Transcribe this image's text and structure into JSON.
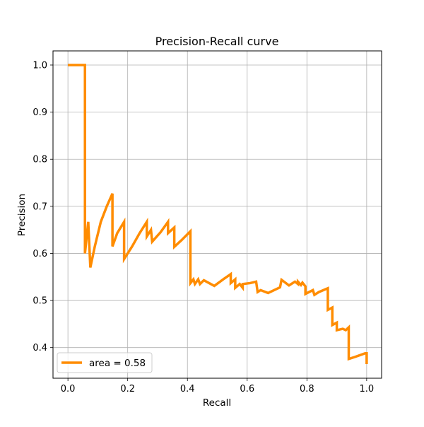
{
  "chart_data": {
    "type": "line",
    "title": "Precision-Recall curve",
    "xlabel": "Recall",
    "ylabel": "Precision",
    "xlim": [
      -0.05,
      1.05
    ],
    "ylim": [
      0.335,
      1.03
    ],
    "xticks": [
      0.0,
      0.2,
      0.4,
      0.6,
      0.8,
      1.0
    ],
    "xtick_labels": [
      "0.0",
      "0.2",
      "0.4",
      "0.6",
      "0.8",
      "1.0"
    ],
    "yticks": [
      0.4,
      0.5,
      0.6,
      0.7,
      0.8,
      0.9,
      1.0
    ],
    "ytick_labels": [
      "0.4",
      "0.5",
      "0.6",
      "0.7",
      "0.8",
      "0.9",
      "1.0"
    ],
    "grid": true,
    "legend_position": "lower-left",
    "colors": {
      "series": "#ff8c00",
      "grid": "#b0b0b0",
      "axis": "#000000"
    },
    "series": [
      {
        "name": "area = 0.58",
        "x": [
          0.0,
          0.057,
          0.057,
          0.057,
          0.068,
          0.075,
          0.075,
          0.09,
          0.11,
          0.13,
          0.149,
          0.149,
          0.165,
          0.188,
          0.188,
          0.215,
          0.24,
          0.264,
          0.264,
          0.278,
          0.282,
          0.282,
          0.31,
          0.335,
          0.335,
          0.356,
          0.356,
          0.38,
          0.41,
          0.41,
          0.42,
          0.425,
          0.436,
          0.442,
          0.455,
          0.49,
          0.52,
          0.545,
          0.545,
          0.56,
          0.56,
          0.575,
          0.585,
          0.585,
          0.61,
          0.63,
          0.635,
          0.645,
          0.67,
          0.71,
          0.715,
          0.74,
          0.76,
          0.77,
          0.77,
          0.78,
          0.785,
          0.795,
          0.795,
          0.82,
          0.825,
          0.84,
          0.87,
          0.87,
          0.885,
          0.885,
          0.9,
          0.9,
          0.92,
          0.93,
          0.94,
          0.94,
          0.96,
          0.995,
          1.0,
          1.0
        ],
        "y": [
          1.0,
          1.0,
          0.88,
          0.6,
          0.667,
          0.57,
          0.57,
          0.615,
          0.667,
          0.7,
          0.727,
          0.615,
          0.643,
          0.667,
          0.588,
          0.615,
          0.643,
          0.667,
          0.636,
          0.65,
          0.625,
          0.625,
          0.645,
          0.667,
          0.643,
          0.655,
          0.614,
          0.628,
          0.647,
          0.537,
          0.545,
          0.535,
          0.545,
          0.535,
          0.543,
          0.531,
          0.545,
          0.556,
          0.537,
          0.545,
          0.527,
          0.535,
          0.527,
          0.535,
          0.537,
          0.54,
          0.518,
          0.522,
          0.516,
          0.528,
          0.544,
          0.532,
          0.54,
          0.535,
          0.54,
          0.533,
          0.538,
          0.53,
          0.514,
          0.522,
          0.512,
          0.518,
          0.526,
          0.48,
          0.485,
          0.448,
          0.453,
          0.437,
          0.44,
          0.437,
          0.443,
          0.376,
          0.38,
          0.388,
          0.388,
          0.365
        ]
      }
    ]
  }
}
